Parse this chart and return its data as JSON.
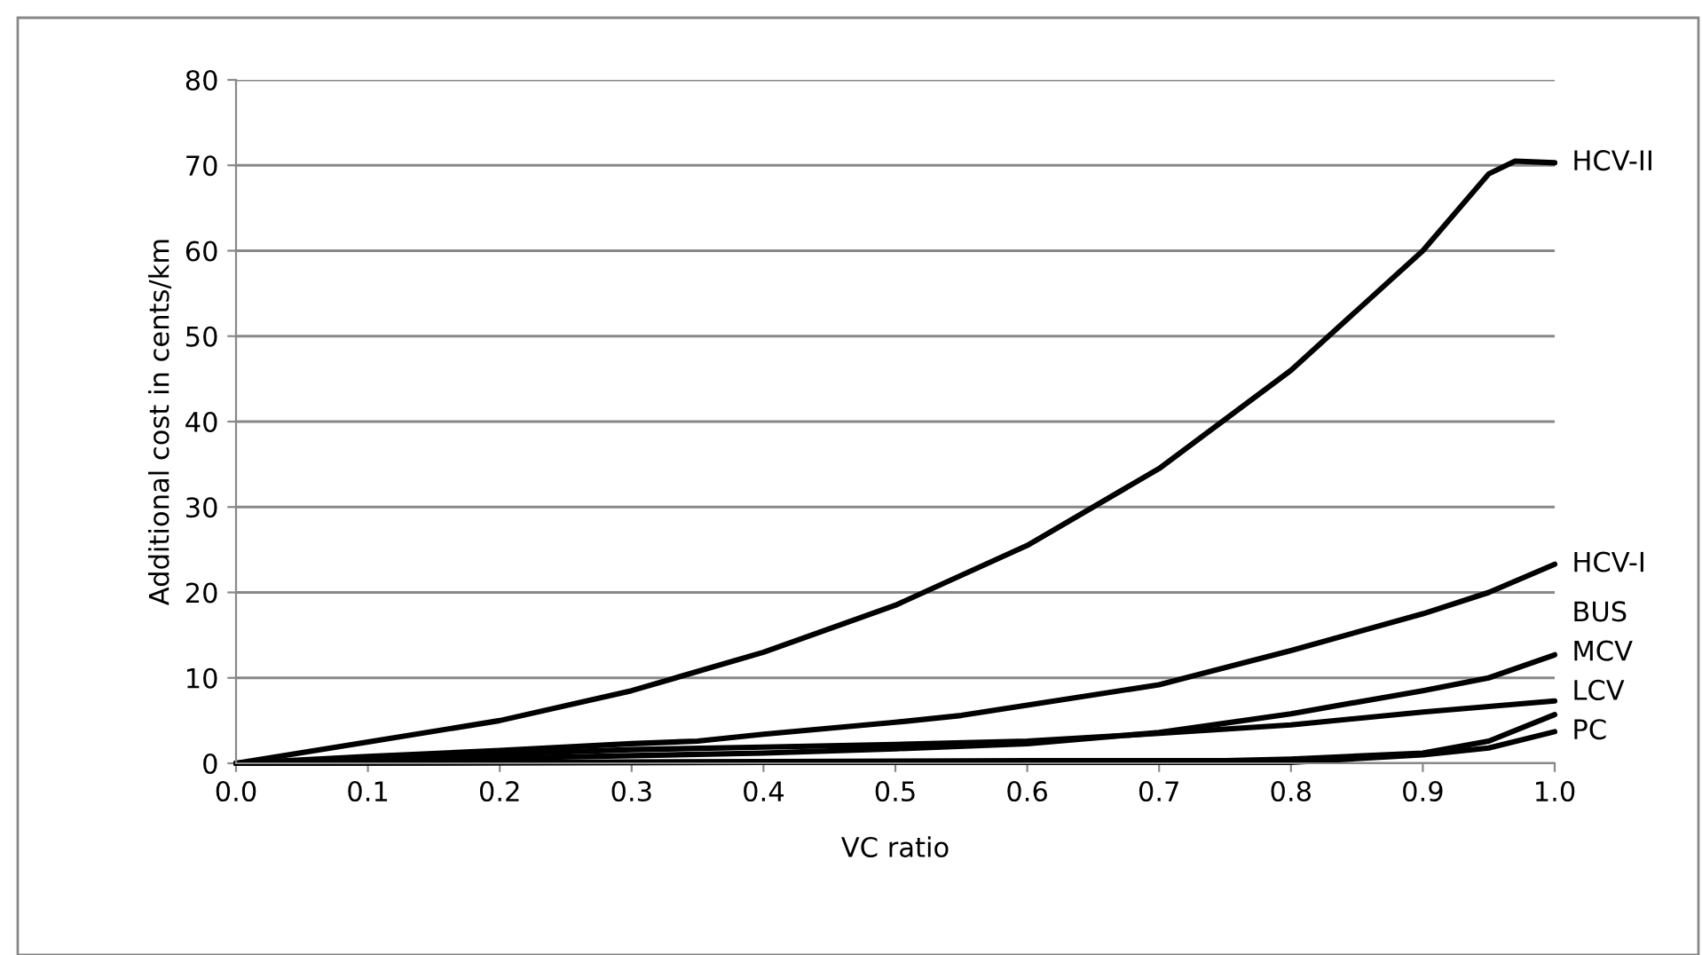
{
  "chart_data": {
    "type": "line",
    "xlabel": "VC ratio",
    "ylabel": "Additional cost in cents/km",
    "xlim": [
      0,
      1
    ],
    "xticks": [
      {
        "value": 0,
        "label": "0.0"
      },
      {
        "value": 0.1,
        "label": "0.1"
      },
      {
        "value": 0.2,
        "label": "0.2"
      },
      {
        "value": 0.3,
        "label": "0.3"
      },
      {
        "value": 0.4,
        "label": "0.4"
      },
      {
        "value": 0.5,
        "label": "0.5"
      },
      {
        "value": 0.6,
        "label": "0.6"
      },
      {
        "value": 0.7,
        "label": "0.7"
      },
      {
        "value": 0.8,
        "label": "0.8"
      },
      {
        "value": 0.9,
        "label": "0.9"
      },
      {
        "value": 1,
        "label": "1.0"
      }
    ],
    "ylim": [
      0,
      80
    ],
    "yticks": [
      0,
      10,
      20,
      30,
      40,
      50,
      60,
      70,
      80
    ],
    "grid": "y",
    "legend": false,
    "marker": "none",
    "line_style": "solid",
    "series": [
      {
        "name": "HCV-II",
        "color": "#000000",
        "x": [
          0,
          0.1,
          0.2,
          0.3,
          0.4,
          0.5,
          0.6,
          0.7,
          0.8,
          0.9,
          0.95,
          0.97,
          1.0
        ],
        "values": [
          0,
          2.5,
          5,
          8.5,
          13,
          18.5,
          25.5,
          34.5,
          46,
          60,
          69,
          70.5,
          70.3
        ]
      },
      {
        "name": "HCV-I",
        "color": "#000000",
        "x": [
          0,
          0.1,
          0.2,
          0.3,
          0.35,
          0.4,
          0.5,
          0.55,
          0.6,
          0.7,
          0.8,
          0.9,
          0.95,
          1.0
        ],
        "values": [
          0,
          0.8,
          1.5,
          2.3,
          2.6,
          3.4,
          4.8,
          5.6,
          6.8,
          9.2,
          13.2,
          17.5,
          20,
          23.3
        ]
      },
      {
        "name": "BUS",
        "color": "#000000",
        "x": [
          0,
          0.1,
          0.2,
          0.3,
          0.4,
          0.5,
          0.6,
          0.7,
          0.8,
          0.9,
          0.95,
          1.0
        ],
        "values": [
          0,
          0.3,
          0.6,
          0.9,
          1.2,
          1.7,
          2.3,
          3.6,
          5.8,
          8.5,
          10,
          12.7
        ]
      },
      {
        "name": "MCV",
        "color": "#000000",
        "x": [
          0,
          0.1,
          0.2,
          0.3,
          0.4,
          0.5,
          0.6,
          0.7,
          0.8,
          0.9,
          1.0
        ],
        "values": [
          0,
          0.6,
          1.1,
          1.6,
          1.9,
          2.2,
          2.6,
          3.5,
          4.5,
          6,
          7.3
        ]
      },
      {
        "name": "LCV",
        "color": "#000000",
        "x": [
          0,
          0.2,
          0.4,
          0.6,
          0.75,
          0.8,
          0.9,
          0.95,
          1.0
        ],
        "values": [
          0,
          0.1,
          0.2,
          0.3,
          0.3,
          0.5,
          1.2,
          2.6,
          5.7
        ]
      },
      {
        "name": "PC",
        "color": "#000000",
        "x": [
          0,
          0.4,
          0.8,
          0.9,
          0.95,
          1.0
        ],
        "values": [
          0,
          0.1,
          0.1,
          1.0,
          1.8,
          3.7
        ]
      }
    ]
  }
}
